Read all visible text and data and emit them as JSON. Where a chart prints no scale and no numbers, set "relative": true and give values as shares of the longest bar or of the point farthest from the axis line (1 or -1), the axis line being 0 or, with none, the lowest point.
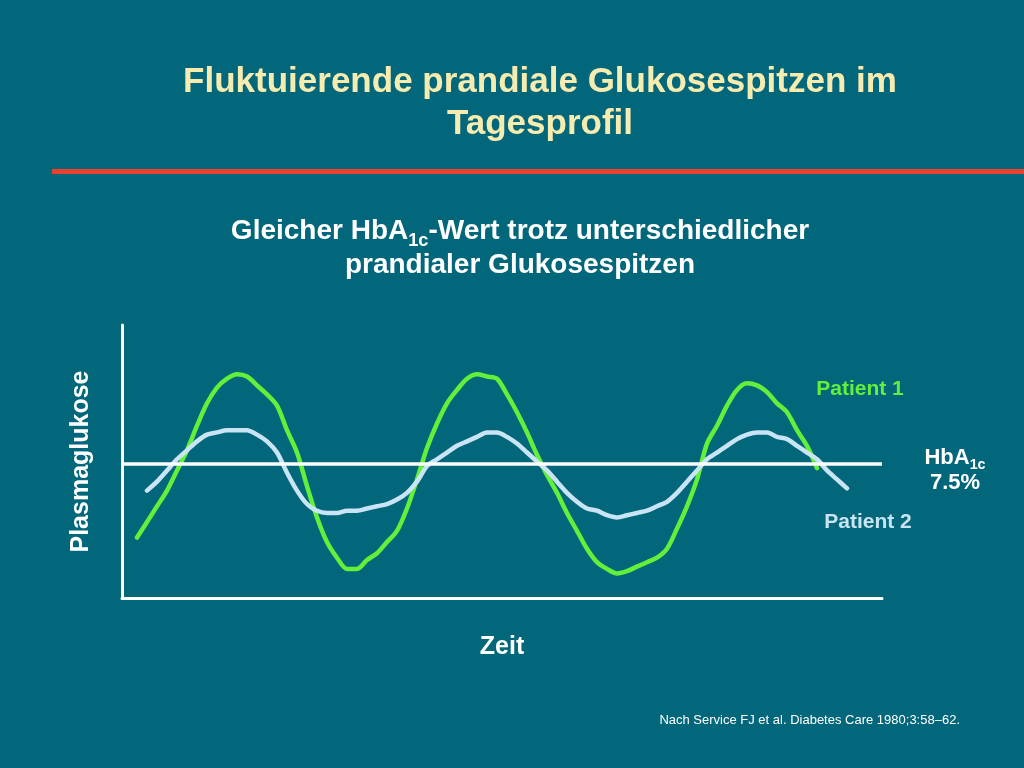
{
  "chart_data": {
    "type": "line",
    "title": "Fluktuierende prandiale Glukosespitzen im Tagesprofil",
    "subtitle": "Gleicher HbA$_{1c}$-Wert trotz unterschiedlicher prandialer Glukosespitzen",
    "xlabel": "Zeit",
    "ylabel": "Plasmaglukose",
    "annotations": [
      "Nach Service FJ et al. Diabetes Care 1980;3:58–62."
    ],
    "categories": [
      null,
      null,
      null,
      null,
      null,
      null,
      null,
      null,
      null,
      null,
      null,
      null,
      null,
      null,
      null,
      null,
      null,
      null,
      null,
      null,
      null,
      null,
      null,
      null,
      null,
      null,
      null,
      null,
      null,
      null,
      null,
      null,
      null,
      null,
      null,
      null,
      null,
      null,
      null,
      null,
      null,
      null,
      null,
      null,
      null,
      null,
      null,
      null,
      null,
      null,
      null,
      null,
      null,
      null,
      null,
      null,
      null,
      null,
      null,
      null,
      null,
      null,
      null,
      null,
      null,
      null,
      null,
      null,
      null,
      null,
      null,
      null,
      null,
      null,
      null,
      null
    ],
    "relative": true,
    "series": [
      {
        "name": "Patient 1",
        "color": "#62f03a",
        "values": [
          null,
          0.27,
          0.34,
          0.41,
          0.48,
          0.57,
          0.66,
          0.77,
          0.87,
          0.94,
          0.98,
          1,
          0.99,
          0.95,
          0.91,
          0.86,
          0.75,
          0.65,
          0.5,
          0.36,
          0.25,
          0.18,
          0.13,
          0.13,
          0.17,
          0.2,
          0.25,
          0.3,
          0.4,
          0.53,
          0.67,
          0.78,
          0.87,
          0.93,
          0.98,
          1,
          0.99,
          0.98,
          0.91,
          0.83,
          0.74,
          0.64,
          0.55,
          0.47,
          0.38,
          0.3,
          0.22,
          0.16,
          0.13,
          0.11,
          0.12,
          0.14,
          0.16,
          0.18,
          0.22,
          0.31,
          0.41,
          0.53,
          0.69,
          0.77,
          0.86,
          0.93,
          0.96,
          0.95,
          0.92,
          0.87,
          0.83,
          0.75,
          0.68,
          0.58,
          null,
          null,
          null,
          null,
          null,
          null
        ]
      },
      {
        "name": "Patient 2",
        "color": "#c8e4f5",
        "values": [
          null,
          null,
          0.48,
          0.52,
          0.57,
          0.62,
          0.66,
          0.7,
          0.73,
          0.74,
          0.75,
          0.75,
          0.75,
          0.73,
          0.7,
          0.65,
          0.56,
          0.48,
          0.42,
          0.39,
          0.38,
          0.38,
          0.39,
          0.39,
          0.4,
          0.41,
          0.42,
          0.44,
          0.47,
          0.52,
          0.59,
          0.62,
          0.65,
          0.68,
          0.7,
          0.72,
          0.74,
          0.74,
          0.72,
          0.69,
          0.65,
          0.61,
          0.57,
          0.52,
          0.47,
          0.43,
          0.4,
          0.39,
          0.37,
          0.36,
          0.37,
          0.38,
          0.39,
          0.41,
          0.43,
          0.47,
          0.52,
          0.57,
          0.62,
          0.65,
          0.68,
          0.71,
          0.73,
          0.74,
          0.74,
          0.72,
          0.71,
          0.68,
          0.65,
          0.62,
          0.57,
          0.53,
          0.49,
          null,
          null,
          null
        ]
      }
    ],
    "ref_lines": [
      {
        "axis": "y",
        "value": 0.6,
        "label": "HbA$_{1c}$ 7.5%",
        "color": "#ffffff"
      }
    ],
    "grid": false,
    "legend": false,
    "marker": "none",
    "line_style": "solid"
  }
}
